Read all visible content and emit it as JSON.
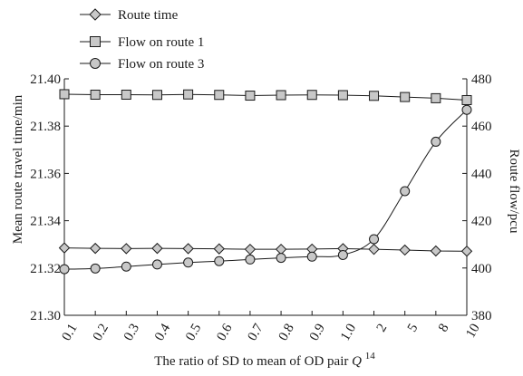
{
  "chart_data": {
    "type": "line",
    "xlabel": "The ratio of SD to mean of OD pair",
    "xlabel_symbol": "Q",
    "xlabel_superscript": "14",
    "ylabel_left": "Mean route travel time/min",
    "ylabel_right": "Route flow/pcu",
    "categories": [
      "0.1",
      "0.2",
      "0.3",
      "0.4",
      "0.5",
      "0.6",
      "0.7",
      "0.8",
      "0.9",
      "1.0",
      "2",
      "5",
      "8",
      "10"
    ],
    "left_axis": {
      "ylim": [
        21.3,
        21.4
      ],
      "ticks": [
        "21.30",
        "21.32",
        "21.34",
        "21.36",
        "21.38",
        "21.40"
      ]
    },
    "right_axis": {
      "ylim": [
        380,
        480
      ],
      "ticks": [
        "380",
        "400",
        "420",
        "440",
        "460",
        "480"
      ]
    },
    "legend_position": "top-left, outside plot",
    "series": [
      {
        "name": "Route time",
        "axis": "left",
        "marker": "diamond",
        "values": [
          21.3285,
          21.3283,
          21.3282,
          21.3283,
          21.3282,
          21.3281,
          21.3279,
          21.3279,
          21.328,
          21.3282,
          21.3279,
          21.3276,
          21.3272,
          21.3271
        ]
      },
      {
        "name": "Flow on route 1",
        "axis": "right",
        "marker": "square",
        "values": [
          473.5,
          473.3,
          473.3,
          473.2,
          473.4,
          473.2,
          472.9,
          473.1,
          473.2,
          473.1,
          472.8,
          472.3,
          471.8,
          471.0
        ]
      },
      {
        "name": "Flow on route 3",
        "axis": "right",
        "marker": "circle",
        "values": [
          399.5,
          399.8,
          400.6,
          401.5,
          402.3,
          402.9,
          403.6,
          404.3,
          404.8,
          405.5,
          412.2,
          432.5,
          453.4,
          466.9
        ]
      }
    ]
  }
}
